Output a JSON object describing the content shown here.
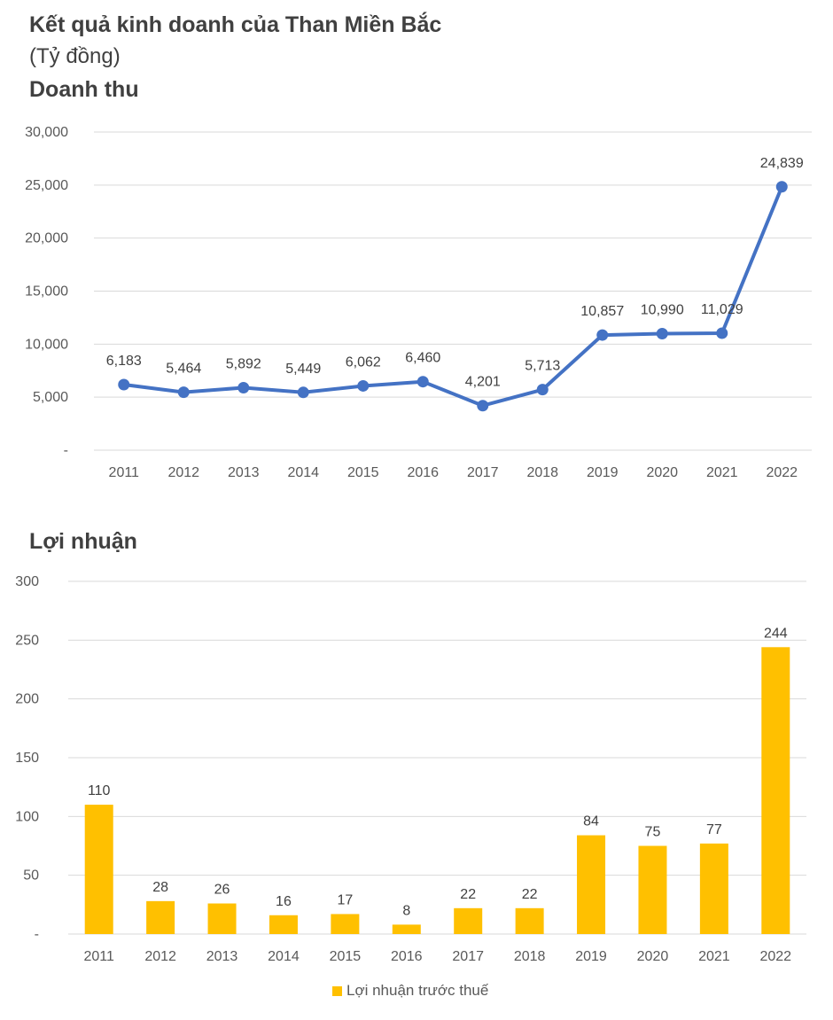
{
  "header": {
    "title": "Kết quả kinh doanh của Than Miền Bắc",
    "unit": "(Tỷ đồng)"
  },
  "chart_data": [
    {
      "type": "line",
      "title": "Doanh thu",
      "categories": [
        "2011",
        "2012",
        "2013",
        "2014",
        "2015",
        "2016",
        "2017",
        "2018",
        "2019",
        "2020",
        "2021",
        "2022"
      ],
      "values": [
        6183,
        5464,
        5892,
        5449,
        6062,
        6460,
        4201,
        5713,
        10857,
        10990,
        11029,
        24839
      ],
      "value_labels": [
        "6,183",
        "5,464",
        "5,892",
        "5,449",
        "6,062",
        "6,460",
        "4,201",
        "5,713",
        "10,857",
        "10,990",
        "11,029",
        "24,839"
      ],
      "y_ticks": [
        "-",
        "5,000",
        "10,000",
        "15,000",
        "20,000",
        "25,000",
        "30,000"
      ],
      "ylim": [
        0,
        30000
      ],
      "grid": true,
      "color": "#4472C4"
    },
    {
      "type": "bar",
      "title": "Lợi nhuận",
      "categories": [
        "2011",
        "2012",
        "2013",
        "2014",
        "2015",
        "2016",
        "2017",
        "2018",
        "2019",
        "2020",
        "2021",
        "2022"
      ],
      "series": [
        {
          "name": "Lợi nhuận trước thuế",
          "values": [
            110,
            28,
            26,
            16,
            17,
            8,
            22,
            22,
            84,
            75,
            77,
            244
          ]
        }
      ],
      "y_ticks": [
        "-",
        "50",
        "100",
        "150",
        "200",
        "250",
        "300"
      ],
      "ylim": [
        0,
        300
      ],
      "grid": true,
      "legend": "bottom-center",
      "color": "#FFC000"
    }
  ]
}
